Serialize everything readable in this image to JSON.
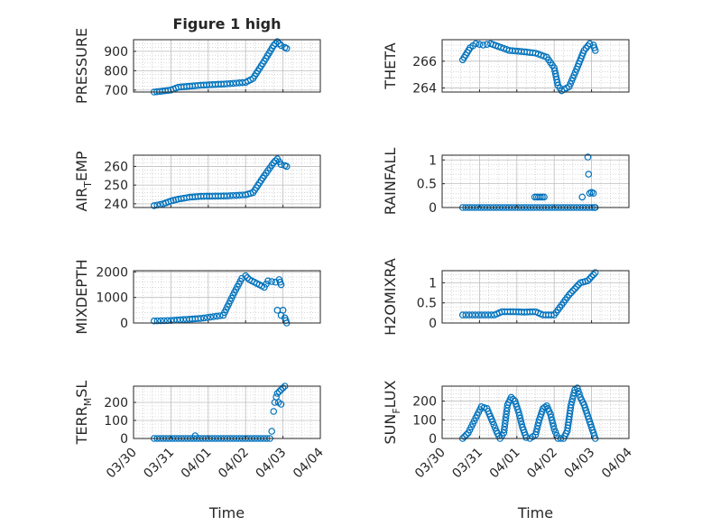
{
  "figure": {
    "title": "Figure 1 high"
  },
  "colors": {
    "marker": "#0072BD",
    "axis": "#262626",
    "grid": "#bdbdbd",
    "background": "#ffffff"
  },
  "chart_data": [
    {
      "id": "pressure",
      "type": "scatter",
      "title": "Figure 1 high",
      "ylabel": "PRESSURE",
      "xlabel": "",
      "xlim": [
        0,
        5
      ],
      "ylim": [
        690,
        960
      ],
      "yticks": [
        700,
        800,
        900
      ],
      "ytick_labels": [
        "700",
        "800",
        "900"
      ],
      "show_xtick_labels": false,
      "grid": true,
      "marker": "circle",
      "curve": [
        [
          0.55,
          690
        ],
        [
          1.0,
          700
        ],
        [
          1.2,
          715
        ],
        [
          1.5,
          720
        ],
        [
          1.8,
          725
        ],
        [
          2.5,
          732
        ],
        [
          3.0,
          740
        ],
        [
          3.2,
          760
        ],
        [
          3.5,
          850
        ],
        [
          3.75,
          930
        ],
        [
          3.85,
          950
        ],
        [
          3.95,
          930
        ],
        [
          4.05,
          920
        ],
        [
          4.1,
          915
        ]
      ]
    },
    {
      "id": "theta",
      "type": "scatter",
      "ylabel": "THETA",
      "xlabel": "",
      "xlim": [
        0,
        5
      ],
      "ylim": [
        263.7,
        267.6
      ],
      "yticks": [
        264,
        266
      ],
      "ytick_labels": [
        "264",
        "266"
      ],
      "show_xtick_labels": false,
      "grid": true,
      "marker": "circle",
      "curve": [
        [
          0.55,
          266.1
        ],
        [
          0.75,
          267.0
        ],
        [
          0.9,
          267.3
        ],
        [
          1.1,
          267.2
        ],
        [
          1.3,
          267.3
        ],
        [
          1.5,
          267.1
        ],
        [
          1.8,
          266.8
        ],
        [
          2.2,
          266.7
        ],
        [
          2.5,
          266.6
        ],
        [
          2.8,
          266.3
        ],
        [
          3.0,
          265.5
        ],
        [
          3.1,
          264.2
        ],
        [
          3.2,
          263.8
        ],
        [
          3.4,
          264.1
        ],
        [
          3.6,
          265.4
        ],
        [
          3.8,
          266.8
        ],
        [
          3.95,
          267.3
        ],
        [
          4.05,
          267.2
        ],
        [
          4.1,
          266.8
        ]
      ]
    },
    {
      "id": "air-temp",
      "type": "scatter",
      "ylabel": "AIR_TEMP",
      "xlabel": "",
      "xlim": [
        0,
        5
      ],
      "ylim": [
        238,
        266
      ],
      "yticks": [
        240,
        250,
        260
      ],
      "ytick_labels": [
        "240",
        "250",
        "260"
      ],
      "show_xtick_labels": false,
      "grid": true,
      "marker": "circle",
      "curve": [
        [
          0.55,
          239
        ],
        [
          0.8,
          240
        ],
        [
          1.0,
          241.5
        ],
        [
          1.2,
          242.5
        ],
        [
          1.5,
          243.5
        ],
        [
          1.8,
          244
        ],
        [
          2.5,
          244.2
        ],
        [
          3.0,
          244.8
        ],
        [
          3.2,
          246
        ],
        [
          3.5,
          255
        ],
        [
          3.75,
          262
        ],
        [
          3.85,
          264
        ],
        [
          3.95,
          261
        ],
        [
          4.05,
          260.5
        ],
        [
          4.1,
          260
        ]
      ]
    },
    {
      "id": "rainfall",
      "type": "scatter",
      "ylabel": "RAINFALL",
      "xlabel": "",
      "xlim": [
        0,
        5
      ],
      "ylim": [
        0,
        1.1
      ],
      "yticks": [
        0,
        0.5,
        1
      ],
      "ytick_labels": [
        "0",
        "0.5",
        "1"
      ],
      "show_xtick_labels": false,
      "grid": true,
      "marker": "circle",
      "curve": [
        [
          0.55,
          0
        ],
        [
          4.1,
          0
        ]
      ],
      "points": [
        [
          2.48,
          0.22
        ],
        [
          2.53,
          0.22
        ],
        [
          2.58,
          0.22
        ],
        [
          2.63,
          0.22
        ],
        [
          2.68,
          0.22
        ],
        [
          2.73,
          0.22
        ],
        [
          3.75,
          0.22
        ],
        [
          3.9,
          1.06
        ],
        [
          3.92,
          0.7
        ],
        [
          3.95,
          0.3
        ],
        [
          4.0,
          0.32
        ],
        [
          4.05,
          0.3
        ],
        [
          4.08,
          0.0
        ]
      ]
    },
    {
      "id": "mixdepth",
      "type": "scatter",
      "ylabel": "MIXDEPTH",
      "xlabel": "",
      "xlim": [
        0,
        5
      ],
      "ylim": [
        0,
        2050
      ],
      "yticks": [
        0,
        1000,
        2000
      ],
      "ytick_labels": [
        "0",
        "1000",
        "2000"
      ],
      "show_xtick_labels": false,
      "grid": true,
      "marker": "circle",
      "curve": [
        [
          0.55,
          80
        ],
        [
          1.0,
          100
        ],
        [
          1.5,
          150
        ],
        [
          1.8,
          180
        ],
        [
          2.4,
          300
        ],
        [
          2.7,
          1200
        ],
        [
          2.9,
          1750
        ],
        [
          3.0,
          1850
        ],
        [
          3.1,
          1700
        ],
        [
          3.3,
          1550
        ],
        [
          3.5,
          1400
        ],
        [
          3.6,
          1650
        ],
        [
          3.8,
          1600
        ],
        [
          3.9,
          1700
        ],
        [
          3.95,
          1500
        ]
      ],
      "points": [
        [
          3.85,
          500
        ],
        [
          3.95,
          300
        ],
        [
          4.0,
          500
        ],
        [
          4.05,
          200
        ],
        [
          4.1,
          0
        ],
        [
          4.08,
          100
        ]
      ]
    },
    {
      "id": "h2omixra",
      "type": "scatter",
      "ylabel": "H2OMIXRA",
      "xlabel": "",
      "xlim": [
        0,
        5
      ],
      "ylim": [
        0,
        1.3
      ],
      "yticks": [
        0,
        0.5,
        1
      ],
      "ytick_labels": [
        "0",
        "0.5",
        "1"
      ],
      "show_xtick_labels": false,
      "grid": true,
      "marker": "circle",
      "curve": [
        [
          0.55,
          0.2
        ],
        [
          1.4,
          0.2
        ],
        [
          1.6,
          0.28
        ],
        [
          1.9,
          0.28
        ],
        [
          2.2,
          0.27
        ],
        [
          2.5,
          0.28
        ],
        [
          2.7,
          0.2
        ],
        [
          3.0,
          0.2
        ],
        [
          3.2,
          0.45
        ],
        [
          3.4,
          0.7
        ],
        [
          3.6,
          0.9
        ],
        [
          3.7,
          1.0
        ],
        [
          3.9,
          1.05
        ],
        [
          4.0,
          1.15
        ],
        [
          4.1,
          1.25
        ]
      ]
    },
    {
      "id": "terr-msl",
      "type": "scatter",
      "ylabel": "TERR_MSL",
      "xlabel": "Time",
      "xlim": [
        0,
        5
      ],
      "ylim": [
        0,
        290
      ],
      "yticks": [
        0,
        100,
        200
      ],
      "ytick_labels": [
        "0",
        "100",
        "200"
      ],
      "show_xtick_labels": true,
      "grid": true,
      "marker": "circle",
      "curve": [
        [
          0.55,
          0
        ],
        [
          3.65,
          0
        ]
      ],
      "points": [
        [
          1.65,
          15
        ],
        [
          3.7,
          40
        ],
        [
          3.75,
          150
        ],
        [
          3.78,
          200
        ],
        [
          3.82,
          230
        ],
        [
          3.85,
          250
        ],
        [
          3.9,
          260
        ],
        [
          3.95,
          270
        ],
        [
          4.0,
          280
        ],
        [
          4.05,
          290
        ],
        [
          3.88,
          200
        ],
        [
          3.95,
          190
        ]
      ]
    },
    {
      "id": "sun-flux",
      "type": "scatter",
      "ylabel": "SUN_FLUX",
      "xlabel": "Time",
      "xlim": [
        0,
        5
      ],
      "ylim": [
        0,
        280
      ],
      "yticks": [
        0,
        100,
        200
      ],
      "ytick_labels": [
        "0",
        "100",
        "200"
      ],
      "show_xtick_labels": true,
      "grid": true,
      "marker": "circle",
      "curve": [
        [
          0.55,
          0
        ],
        [
          0.7,
          30
        ],
        [
          0.9,
          110
        ],
        [
          1.05,
          170
        ],
        [
          1.2,
          160
        ],
        [
          1.35,
          90
        ],
        [
          1.45,
          40
        ],
        [
          1.55,
          0
        ],
        [
          1.65,
          30
        ],
        [
          1.75,
          180
        ],
        [
          1.85,
          220
        ],
        [
          1.95,
          200
        ],
        [
          2.05,
          140
        ],
        [
          2.15,
          60
        ],
        [
          2.25,
          5
        ],
        [
          2.35,
          0
        ],
        [
          2.5,
          20
        ],
        [
          2.6,
          100
        ],
        [
          2.7,
          160
        ],
        [
          2.8,
          175
        ],
        [
          2.9,
          130
        ],
        [
          3.0,
          50
        ],
        [
          3.1,
          0
        ],
        [
          3.25,
          0
        ],
        [
          3.35,
          40
        ],
        [
          3.45,
          180
        ],
        [
          3.55,
          260
        ],
        [
          3.62,
          270
        ],
        [
          3.7,
          220
        ],
        [
          3.8,
          180
        ],
        [
          3.9,
          120
        ],
        [
          4.0,
          60
        ],
        [
          4.1,
          0
        ]
      ]
    }
  ],
  "x_axis": {
    "tick_labels": [
      "03/30",
      "03/31",
      "04/01",
      "04/02",
      "04/03",
      "04/04"
    ]
  }
}
